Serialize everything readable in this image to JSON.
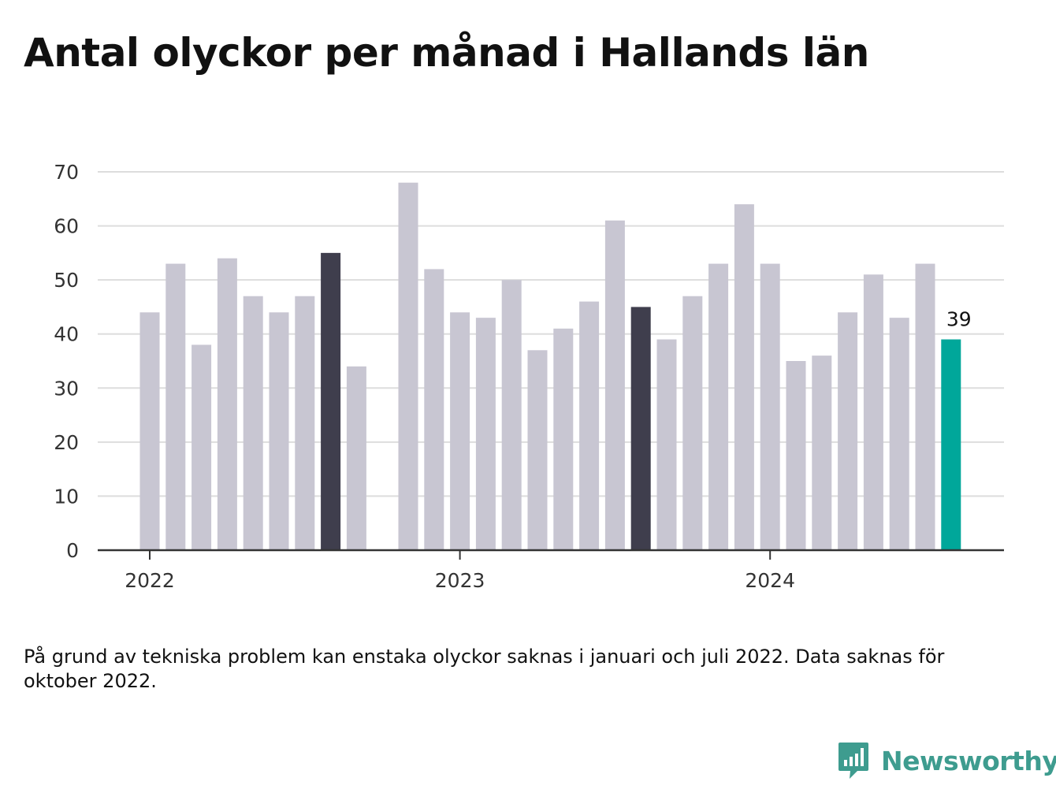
{
  "title": "Antal olyckor per månad i Hallands län",
  "footnote": "På grund av tekniska problem kan enstaka olyckor saknas i januari och juli 2022. Data saknas för oktober 2022.",
  "brand": {
    "name": "Newsworthy",
    "icon": "newsworthy-logo-icon",
    "color": "#3e9c8f"
  },
  "chart_data": {
    "type": "bar",
    "title": "Antal olyckor per månad i Hallands län",
    "xlabel": "",
    "ylabel": "",
    "ylim": [
      0,
      70
    ],
    "yticks": [
      0,
      10,
      20,
      30,
      40,
      50,
      60,
      70
    ],
    "xticks": [
      {
        "label": "2022",
        "at": "2022-01"
      },
      {
        "label": "2023",
        "at": "2023-01"
      },
      {
        "label": "2024",
        "at": "2024-01"
      }
    ],
    "grid": true,
    "colors": {
      "default": "#c8c6d2",
      "highlight": "#3f3e4d",
      "latest": "#00a79a"
    },
    "highlight": [
      "2022-08",
      "2023-08"
    ],
    "latest": "2024-08",
    "data_labels": [
      {
        "category": "2024-08",
        "text": "39"
      }
    ],
    "categories": [
      "2022-01",
      "2022-02",
      "2022-03",
      "2022-04",
      "2022-05",
      "2022-06",
      "2022-07",
      "2022-08",
      "2022-09",
      "2022-10",
      "2022-11",
      "2022-12",
      "2023-01",
      "2023-02",
      "2023-03",
      "2023-04",
      "2023-05",
      "2023-06",
      "2023-07",
      "2023-08",
      "2023-09",
      "2023-10",
      "2023-11",
      "2023-12",
      "2024-01",
      "2024-02",
      "2024-03",
      "2024-04",
      "2024-05",
      "2024-06",
      "2024-07",
      "2024-08"
    ],
    "values": [
      44,
      53,
      38,
      54,
      47,
      44,
      47,
      55,
      34,
      null,
      68,
      52,
      44,
      43,
      50,
      37,
      41,
      46,
      61,
      45,
      39,
      47,
      53,
      64,
      53,
      35,
      36,
      44,
      51,
      43,
      53,
      39
    ]
  }
}
